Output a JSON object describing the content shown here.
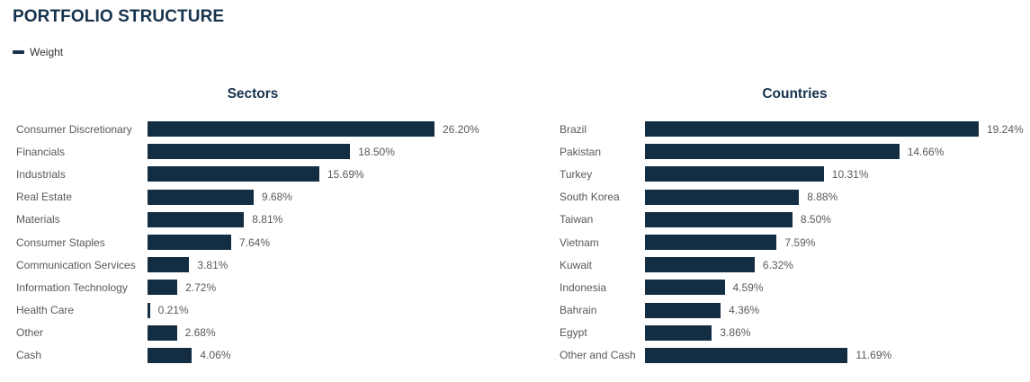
{
  "page": {
    "title": "PORTFOLIO STRUCTURE"
  },
  "legend": {
    "label": "Weight",
    "marker_color": "#17334d"
  },
  "colors": {
    "bar": "#132d43",
    "heading": "#17334d",
    "category_label": "#595959",
    "value_label": "#595959"
  },
  "chart_data": [
    {
      "type": "bar",
      "orientation": "horizontal",
      "title": "Sectors",
      "series_name": "Weight",
      "unit": "%",
      "grid": false,
      "legend_position": "top-left",
      "categories": [
        "Consumer Discretionary",
        "Financials",
        "Industrials",
        "Real Estate",
        "Materials",
        "Consumer Staples",
        "Communication Services",
        "Information Technology",
        "Health Care",
        "Other",
        "Cash"
      ],
      "values": [
        26.2,
        18.5,
        15.69,
        9.68,
        8.81,
        7.64,
        3.81,
        2.72,
        0.21,
        2.68,
        4.06
      ],
      "value_labels": [
        "26.20%",
        "18.50%",
        "15.69%",
        "9.68%",
        "8.81%",
        "7.64%",
        "3.81%",
        "2.72%",
        "0.21%",
        "2.68%",
        "4.06%"
      ]
    },
    {
      "type": "bar",
      "orientation": "horizontal",
      "title": "Countries",
      "series_name": "Weight",
      "unit": "%",
      "grid": false,
      "legend_position": "top-left",
      "categories": [
        "Brazil",
        "Pakistan",
        "Turkey",
        "South Korea",
        "Taiwan",
        "Vietnam",
        "Kuwait",
        "Indonesia",
        "Bahrain",
        "Egypt",
        "Other and Cash"
      ],
      "values": [
        19.24,
        14.66,
        10.31,
        8.88,
        8.5,
        7.59,
        6.32,
        4.59,
        4.36,
        3.86,
        11.69
      ],
      "value_labels": [
        "19.24%",
        "14.66%",
        "10.31%",
        "8.88%",
        "8.50%",
        "7.59%",
        "6.32%",
        "4.59%",
        "4.36%",
        "3.86%",
        "11.69%"
      ]
    }
  ]
}
